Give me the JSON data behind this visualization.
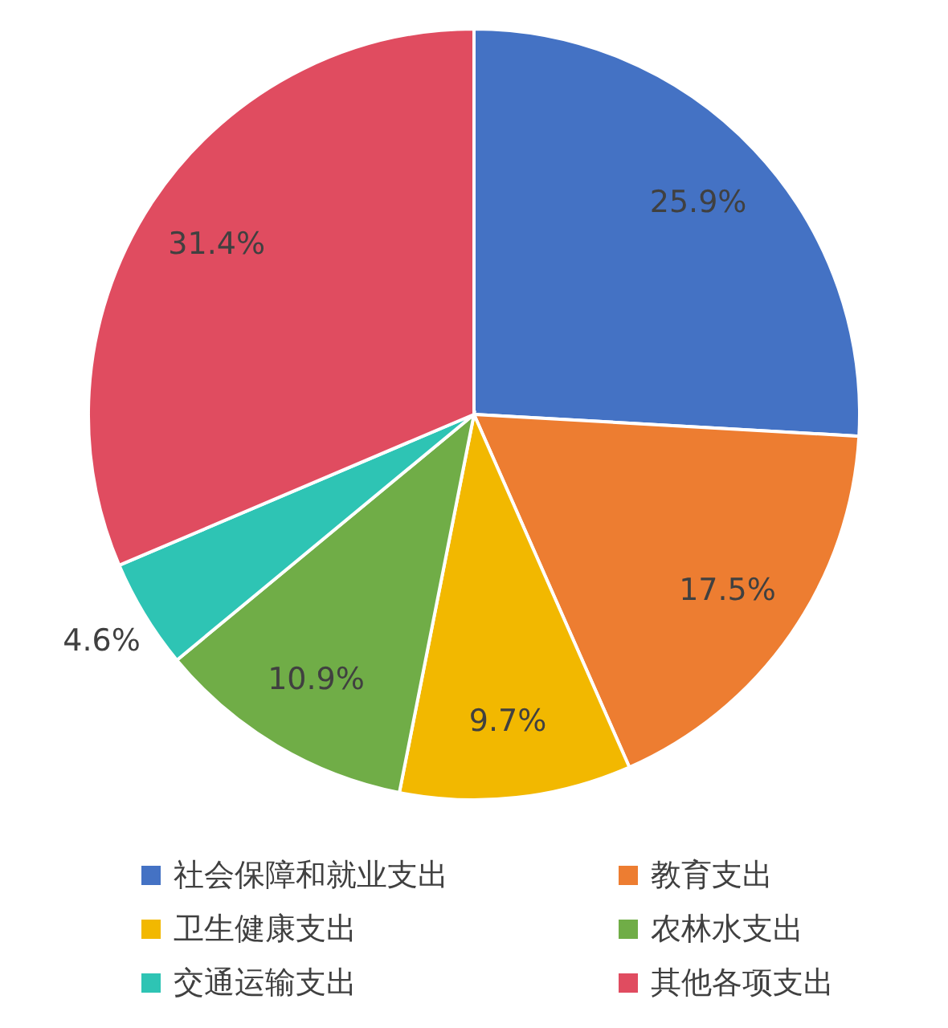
{
  "chart_data": {
    "type": "pie",
    "categories": [
      "社会保障和就业支出",
      "教育支出",
      "卫生健康支出",
      "农林水支出",
      "交通运输支出",
      "其他各项支出"
    ],
    "values": [
      25.9,
      17.5,
      9.7,
      10.9,
      4.6,
      31.4
    ],
    "colors": [
      "#4472c4",
      "#ed7d31",
      "#f2b800",
      "#70ad47",
      "#2ec4b4",
      "#e04c60"
    ],
    "value_labels": [
      "25.9%",
      "17.5%",
      "9.7%",
      "10.9%",
      "4.6%",
      "31.4%"
    ],
    "legend": "bottom"
  }
}
